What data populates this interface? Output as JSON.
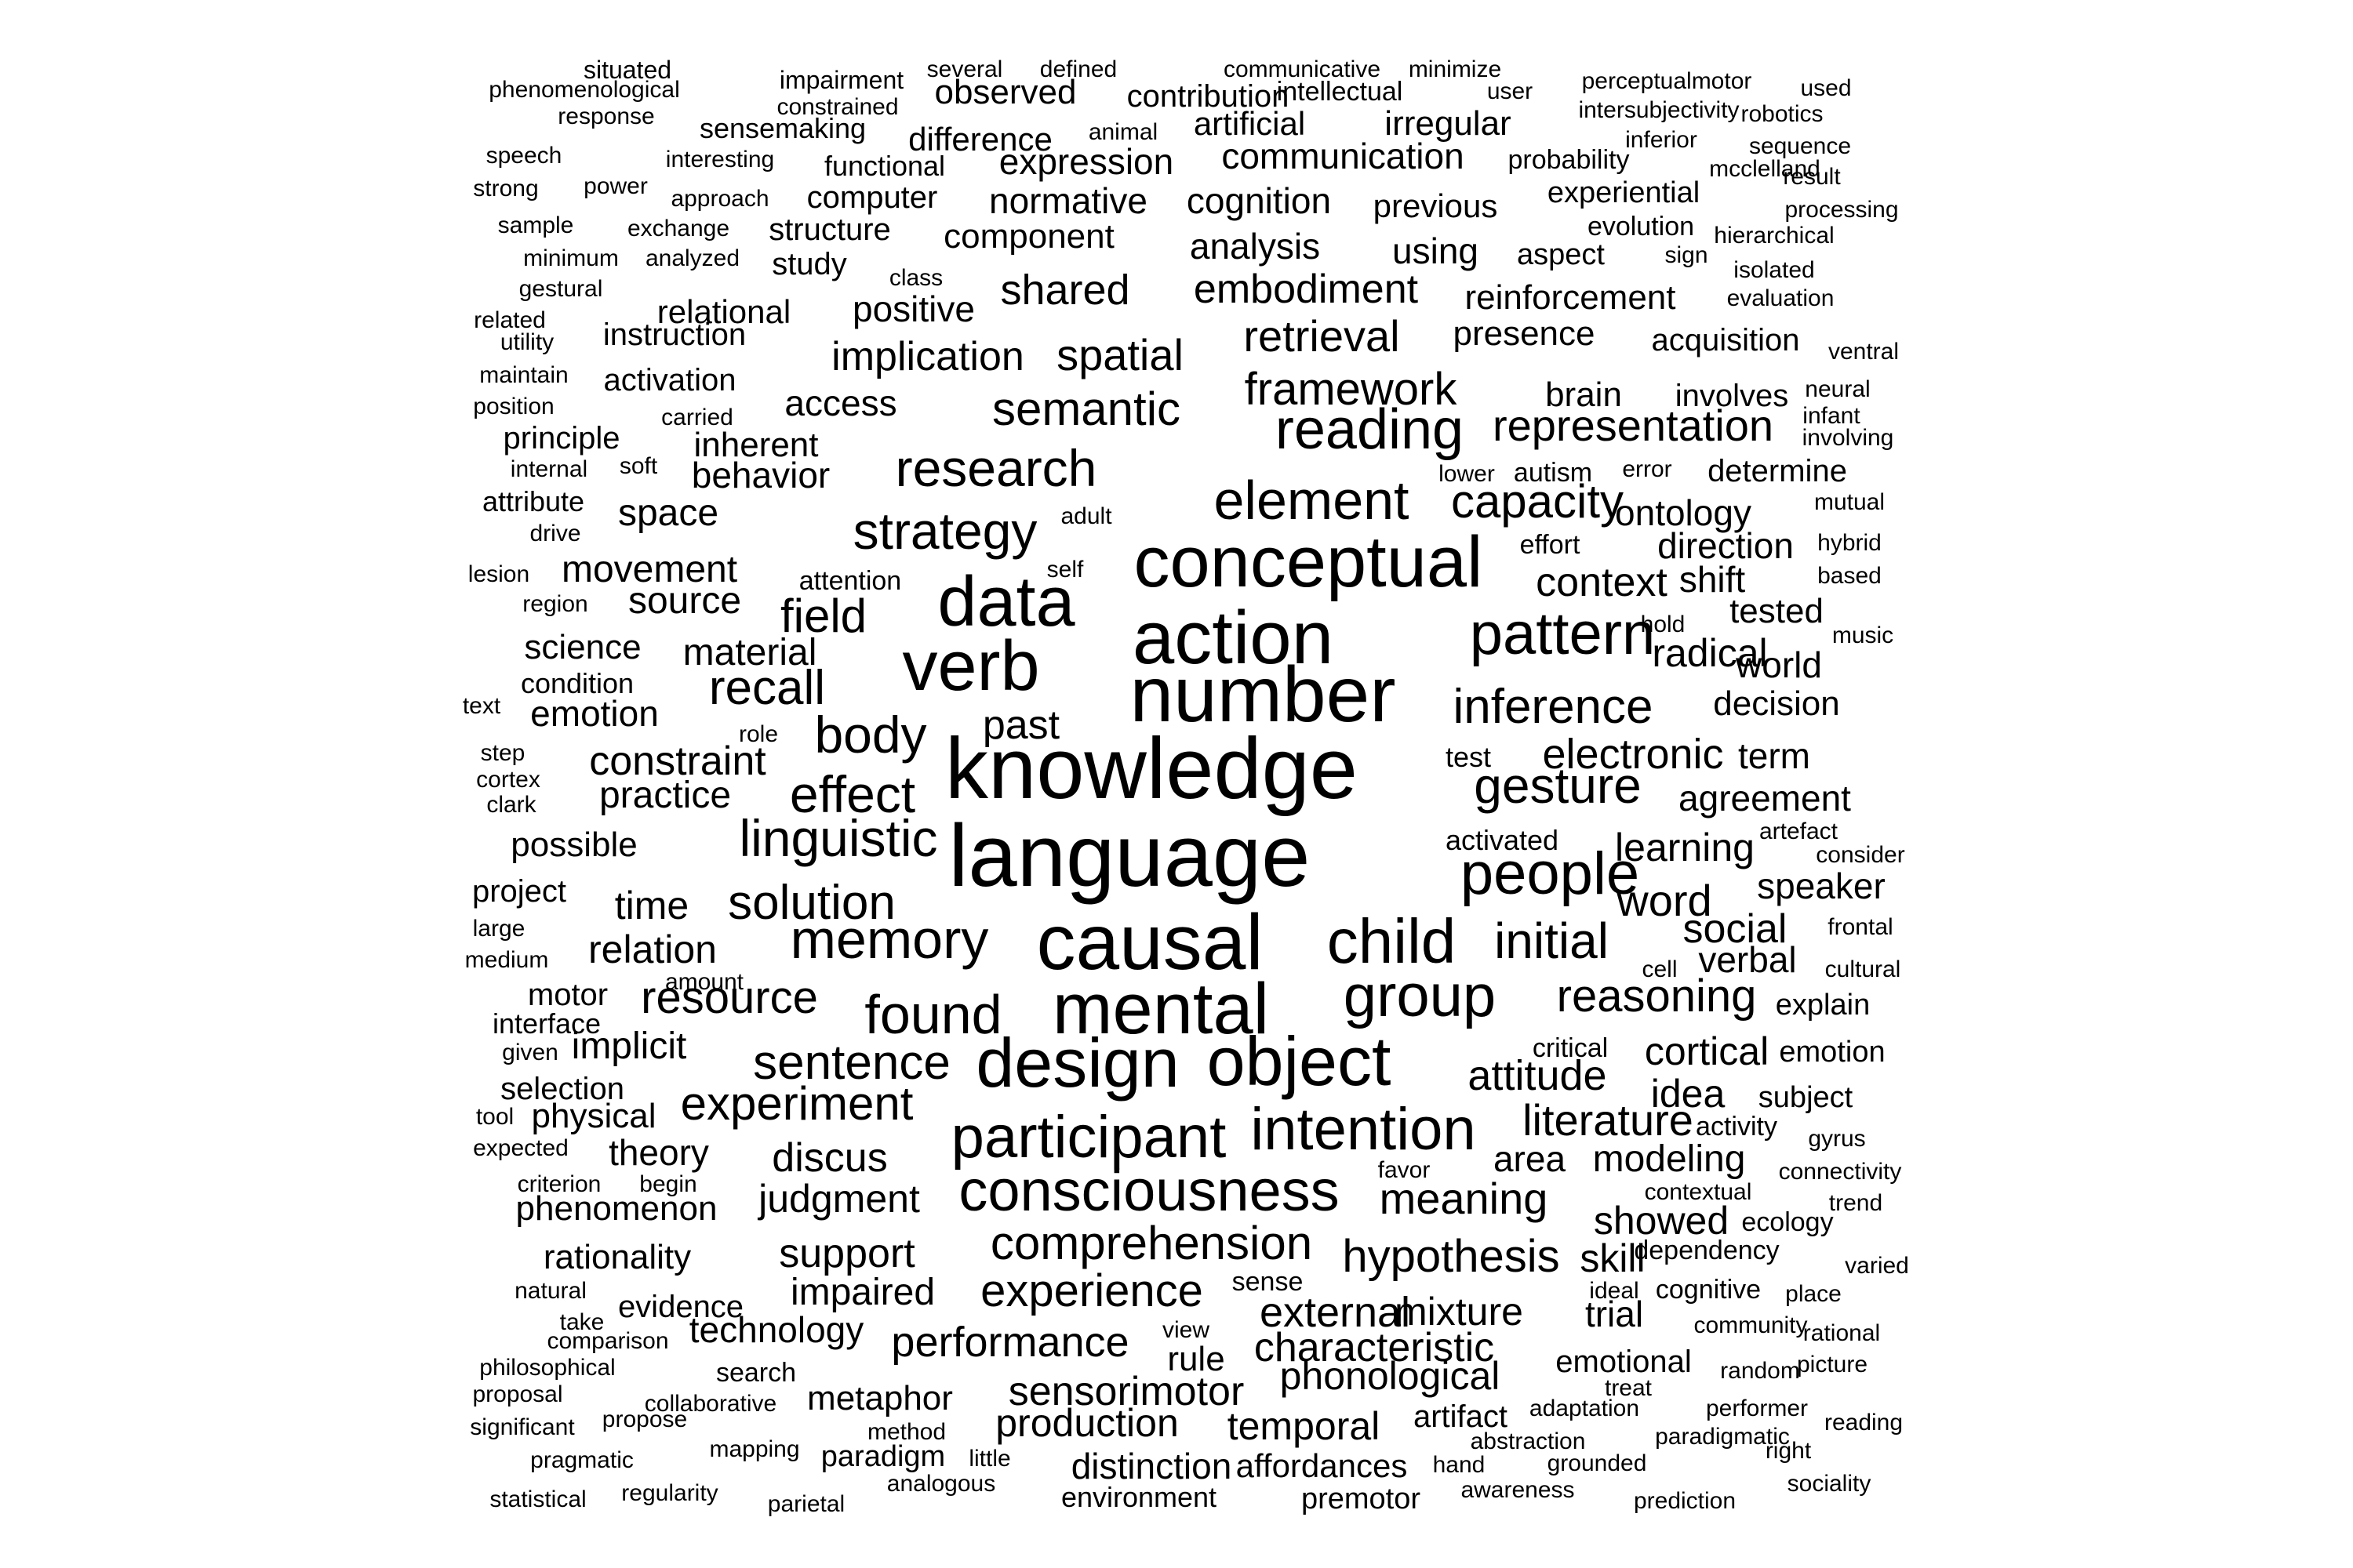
{
  "words": [
    "situated",
    "impairment",
    "several",
    "defined",
    "communicative",
    "minimize",
    "phenomenological",
    "constrained",
    "observed",
    "contribution",
    "intellectual",
    "user",
    "perceptualmotor",
    "used",
    "response",
    "intersubjectivity",
    "robotics",
    "sensemaking",
    "difference",
    "animal",
    "artificial",
    "irregular",
    "inferior",
    "sequence",
    "speech",
    "interesting",
    "functional",
    "expression",
    "communication",
    "probability",
    "mcclelland",
    "strong",
    "power",
    "approach",
    "computer",
    "normative",
    "cognition",
    "previous",
    "experiential",
    "result",
    "processing",
    "sample",
    "exchange",
    "structure",
    "component",
    "evolution",
    "hierarchical",
    "minimum",
    "analyzed",
    "analysis",
    "using",
    "aspect",
    "sign",
    "study",
    "class",
    "isolated",
    "gestural",
    "embodiment",
    "shared",
    "reinforcement",
    "evaluation",
    "related",
    "relational",
    "positive",
    "utility",
    "instruction",
    "retrieval",
    "presence",
    "acquisition",
    "ventral",
    "implication",
    "spatial",
    "maintain",
    "activation",
    "framework",
    "brain",
    "involves",
    "neural",
    "position",
    "carried",
    "access",
    "semantic",
    "infant",
    "principle",
    "inherent",
    "reading",
    "representation",
    "involving",
    "internal",
    "soft",
    "lower",
    "autism",
    "error",
    "determine",
    "research",
    "attribute",
    "behavior",
    "capacity",
    "mutual",
    "element",
    "ontology",
    "drive",
    "space",
    "adult",
    "strategy",
    "hybrid",
    "effort",
    "direction",
    "lesion",
    "movement",
    "self",
    "conceptual",
    "based",
    "attention",
    "shift",
    "region",
    "source",
    "data",
    "context",
    "tested",
    "hold",
    "field",
    "music",
    "action",
    "pattern",
    "science",
    "material",
    "radical",
    "condition",
    "verb",
    "world",
    "recall",
    "text",
    "emotion",
    "number",
    "inference",
    "decision",
    "past",
    "role",
    "body",
    "step",
    "test",
    "electronic",
    "term",
    "cortex",
    "constraint",
    "knowledge",
    "clark",
    "gesture",
    "agreement",
    "practice",
    "effect",
    "activated",
    "artefact",
    "linguistic",
    "learning",
    "possible",
    "consider",
    "language",
    "people",
    "project",
    "time",
    "word",
    "speaker",
    "solution",
    "large",
    "frontal",
    "memory",
    "relation",
    "medium",
    "social",
    "initial",
    "causal",
    "child",
    "cell",
    "verbal",
    "cultural",
    "amount",
    "motor",
    "resource",
    "explain",
    "group",
    "reasoning",
    "interface",
    "found",
    "mental",
    "critical",
    "given",
    "implicit",
    "cortical",
    "emotion",
    "selection",
    "sentence",
    "attitude",
    "design",
    "object",
    "idea",
    "subject",
    "tool",
    "physical",
    "experiment",
    "activity",
    "gyrus",
    "literature",
    "expected",
    "theory",
    "favor",
    "area",
    "modeling",
    "participant",
    "intention",
    "discus",
    "criterion",
    "connectivity",
    "begin",
    "contextual",
    "judgment",
    "consciousness",
    "meaning",
    "phenomenon",
    "trend",
    "showed",
    "ecology",
    "rationality",
    "dependency",
    "comprehension",
    "skill",
    "hypothesis",
    "support",
    "varied",
    "natural",
    "impaired",
    "ideal",
    "cognitive",
    "evidence",
    "sense",
    "place",
    "experience",
    "take",
    "trial",
    "mixture",
    "external",
    "community",
    "comparison",
    "technology",
    "view",
    "rational",
    "philosophical",
    "characteristic",
    "rule",
    "performance",
    "emotional",
    "random",
    "picture",
    "search",
    "phonological",
    "proposal",
    "treat",
    "collaborative",
    "metaphor",
    "sensorimotor",
    "adaptation",
    "performer",
    "significant",
    "propose",
    "artifact",
    "production",
    "temporal",
    "paradigmatic",
    "reading",
    "method",
    "abstraction",
    "right",
    "mapping",
    "paradigm",
    "pragmatic",
    "little",
    "hand",
    "grounded",
    "distinction",
    "affordances",
    "analogous",
    "sociality",
    "statistical",
    "regularity",
    "awareness",
    "premotor",
    "environment",
    "parietal",
    "prediction"
  ]
}
